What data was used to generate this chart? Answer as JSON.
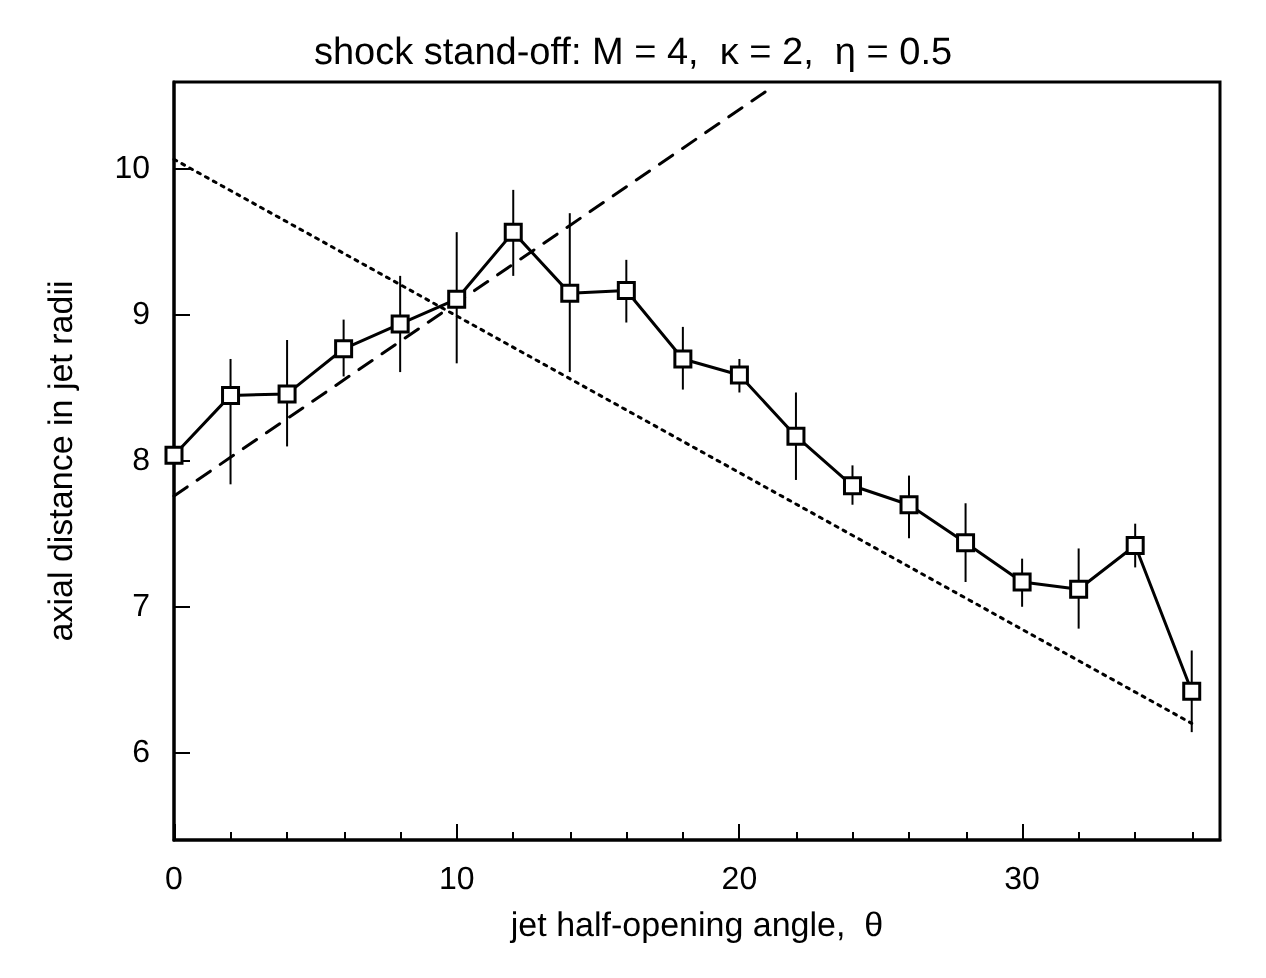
{
  "chart_data": {
    "type": "line",
    "title": "shock stand-off: M = 4,  κ = 2,  η = 0.5",
    "xlabel": "jet half-opening angle,  θ",
    "ylabel": "axial distance in jet radii",
    "xlim": [
      0,
      37
    ],
    "xticks": [
      0,
      10,
      20,
      30
    ],
    "ylim": [
      5.4,
      10.6
    ],
    "yticks": [
      6,
      7,
      8,
      9,
      10
    ],
    "grid": false,
    "series": [
      {
        "color": "#000000",
        "marker": "square",
        "line_style": "solid",
        "x": [
          0,
          2,
          4,
          6,
          8,
          10,
          12,
          14,
          16,
          18,
          20,
          22,
          24,
          26,
          28,
          30,
          32,
          34,
          36
        ],
        "values": [
          8.04,
          8.45,
          8.46,
          8.77,
          8.94,
          9.11,
          9.57,
          9.15,
          9.17,
          8.7,
          8.59,
          8.17,
          7.83,
          7.7,
          7.44,
          7.17,
          7.12,
          7.42,
          6.42
        ],
        "errors": [
          null,
          [
            7.84,
            8.7
          ],
          [
            8.1,
            8.83
          ],
          [
            8.58,
            8.97
          ],
          [
            8.61,
            9.27
          ],
          [
            8.67,
            9.57
          ],
          [
            9.27,
            9.86
          ],
          [
            8.61,
            9.7
          ],
          [
            8.95,
            9.38
          ],
          [
            8.49,
            8.92
          ],
          [
            8.47,
            8.7
          ],
          [
            7.87,
            8.47
          ],
          [
            7.7,
            7.97
          ],
          [
            7.47,
            7.9
          ],
          [
            7.17,
            7.71
          ],
          [
            7.0,
            7.33
          ],
          [
            6.85,
            7.4
          ],
          [
            7.27,
            7.57
          ],
          [
            6.14,
            6.7
          ]
        ]
      },
      {
        "color": "#000000",
        "marker": "none",
        "line_style": "dashed",
        "x": [
          0,
          21.2
        ],
        "values": [
          7.76,
          10.57
        ]
      },
      {
        "color": "#000000",
        "marker": "none",
        "line_style": "dotted",
        "x": [
          0,
          36
        ],
        "values": [
          10.07,
          6.2
        ]
      }
    ]
  }
}
